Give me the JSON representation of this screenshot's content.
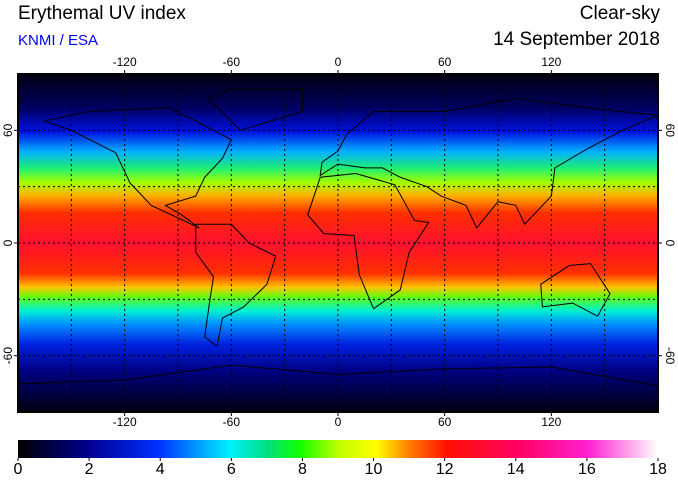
{
  "header": {
    "title": "Erythemal UV index",
    "source": "KNMI / ESA",
    "condition": "Clear-sky",
    "date": "14 September 2018"
  },
  "map": {
    "xlim": [
      -180,
      180
    ],
    "ylim": [
      -90,
      90
    ],
    "xticks": [
      -120,
      -60,
      0,
      60,
      120
    ],
    "yticks": [
      -60,
      0,
      60
    ],
    "xgrid": [
      -150,
      -120,
      -90,
      -60,
      -30,
      0,
      30,
      60,
      90,
      120,
      150
    ],
    "ygrid": [
      -60,
      -30,
      0,
      30,
      60
    ]
  },
  "colorbar": {
    "lim": [
      0,
      18
    ],
    "ticks": [
      0,
      2,
      4,
      6,
      8,
      10,
      12,
      14,
      16,
      18
    ]
  }
}
